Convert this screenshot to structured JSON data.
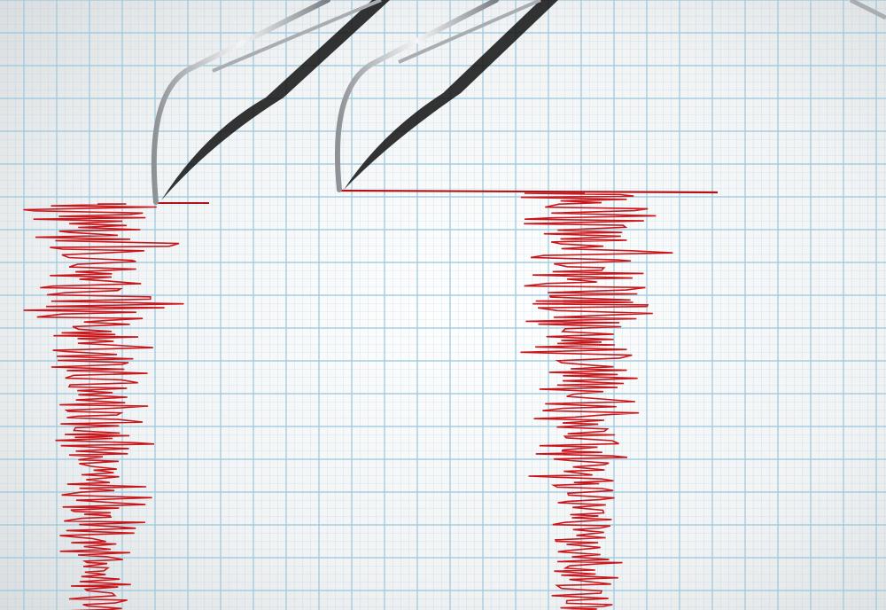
{
  "image": {
    "subject": "seismograph",
    "colors": {
      "paper": "#f4f5f5",
      "grid": "#9fcadd",
      "trace": "#c8161b",
      "needle": "#b9bcc0"
    }
  }
}
